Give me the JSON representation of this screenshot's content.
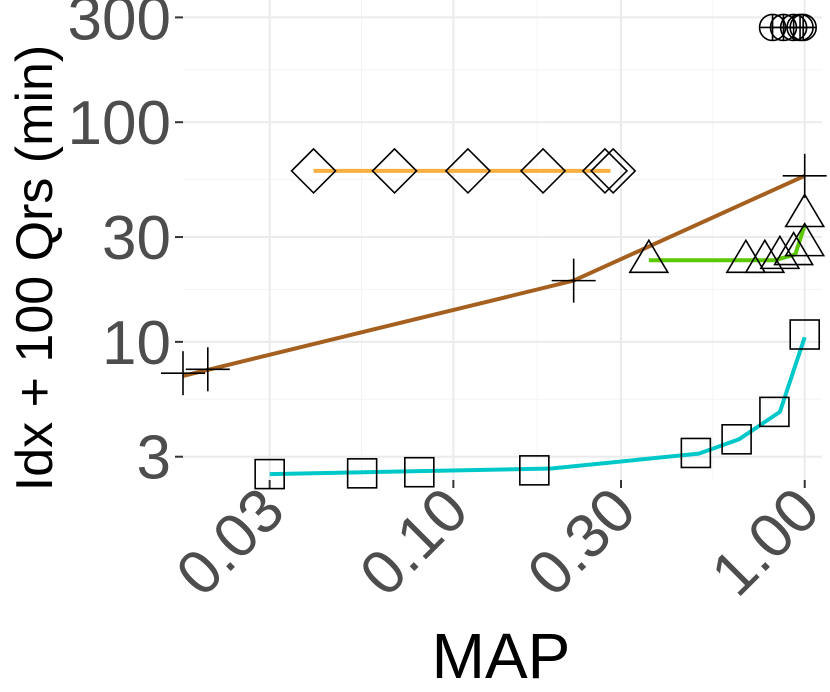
{
  "chart_data": {
    "type": "line",
    "title": "",
    "xlabel": "MAP",
    "ylabel": "Idx + 100 Qrs (min)",
    "x_scale": "log",
    "y_scale": "log",
    "xlim": [
      0.017,
      1.12
    ],
    "ylim": [
      2.35,
      360
    ],
    "x_ticks": [
      0.03,
      0.1,
      0.3,
      1.0
    ],
    "x_tick_labels": [
      "0.03",
      "0.10",
      "0.30",
      "1.00"
    ],
    "y_ticks": [
      3,
      10,
      30,
      100,
      300
    ],
    "y_tick_labels": [
      "3",
      "10",
      "30",
      "100",
      "300"
    ],
    "grid": true,
    "legend": "none",
    "series": [
      {
        "color": "#f5b041",
        "marker": "diamond",
        "line": [
          [
            0.04,
            60
          ],
          [
            0.28,
            60
          ]
        ],
        "points": [
          [
            0.04,
            60
          ],
          [
            0.068,
            60
          ],
          [
            0.11,
            60
          ],
          [
            0.18,
            60
          ],
          [
            0.27,
            60
          ],
          [
            0.285,
            60
          ]
        ]
      },
      {
        "color": "#a55f1f",
        "marker": "plus",
        "line": [
          [
            0.017,
            7
          ],
          [
            0.22,
            19
          ],
          [
            1.0,
            57
          ]
        ],
        "points": [
          [
            0.017,
            7.2
          ],
          [
            0.02,
            7.5
          ],
          [
            0.22,
            19
          ],
          [
            1.0,
            57
          ]
        ]
      },
      {
        "color": "#5cc800",
        "marker": "triangle",
        "line": [
          [
            0.36,
            23.5
          ],
          [
            0.82,
            23.5
          ],
          [
            0.94,
            25
          ],
          [
            1.0,
            34
          ]
        ],
        "points": [
          [
            0.36,
            23.5
          ],
          [
            0.68,
            23.5
          ],
          [
            0.77,
            23.5
          ],
          [
            0.85,
            24.5
          ],
          [
            0.93,
            25.5
          ],
          [
            1.0,
            28
          ],
          [
            1.0,
            38
          ]
        ]
      },
      {
        "color": "#00c8c8",
        "marker": "square",
        "line": [
          [
            0.03,
            2.5
          ],
          [
            0.19,
            2.65
          ],
          [
            0.5,
            3.1
          ],
          [
            0.65,
            3.6
          ],
          [
            0.85,
            4.8
          ],
          [
            1.0,
            10.5
          ]
        ],
        "points": [
          [
            0.03,
            2.5
          ],
          [
            0.055,
            2.52
          ],
          [
            0.08,
            2.55
          ],
          [
            0.17,
            2.6
          ],
          [
            0.49,
            3.12
          ],
          [
            0.64,
            3.6
          ],
          [
            0.82,
            4.8
          ],
          [
            1.0,
            10.8
          ]
        ]
      },
      {
        "color": "#000000",
        "marker": "circle-plus",
        "line": [],
        "points": [
          [
            0.81,
            270
          ],
          [
            0.87,
            270
          ],
          [
            0.93,
            270
          ],
          [
            0.97,
            270
          ],
          [
            0.99,
            270
          ]
        ]
      }
    ]
  }
}
